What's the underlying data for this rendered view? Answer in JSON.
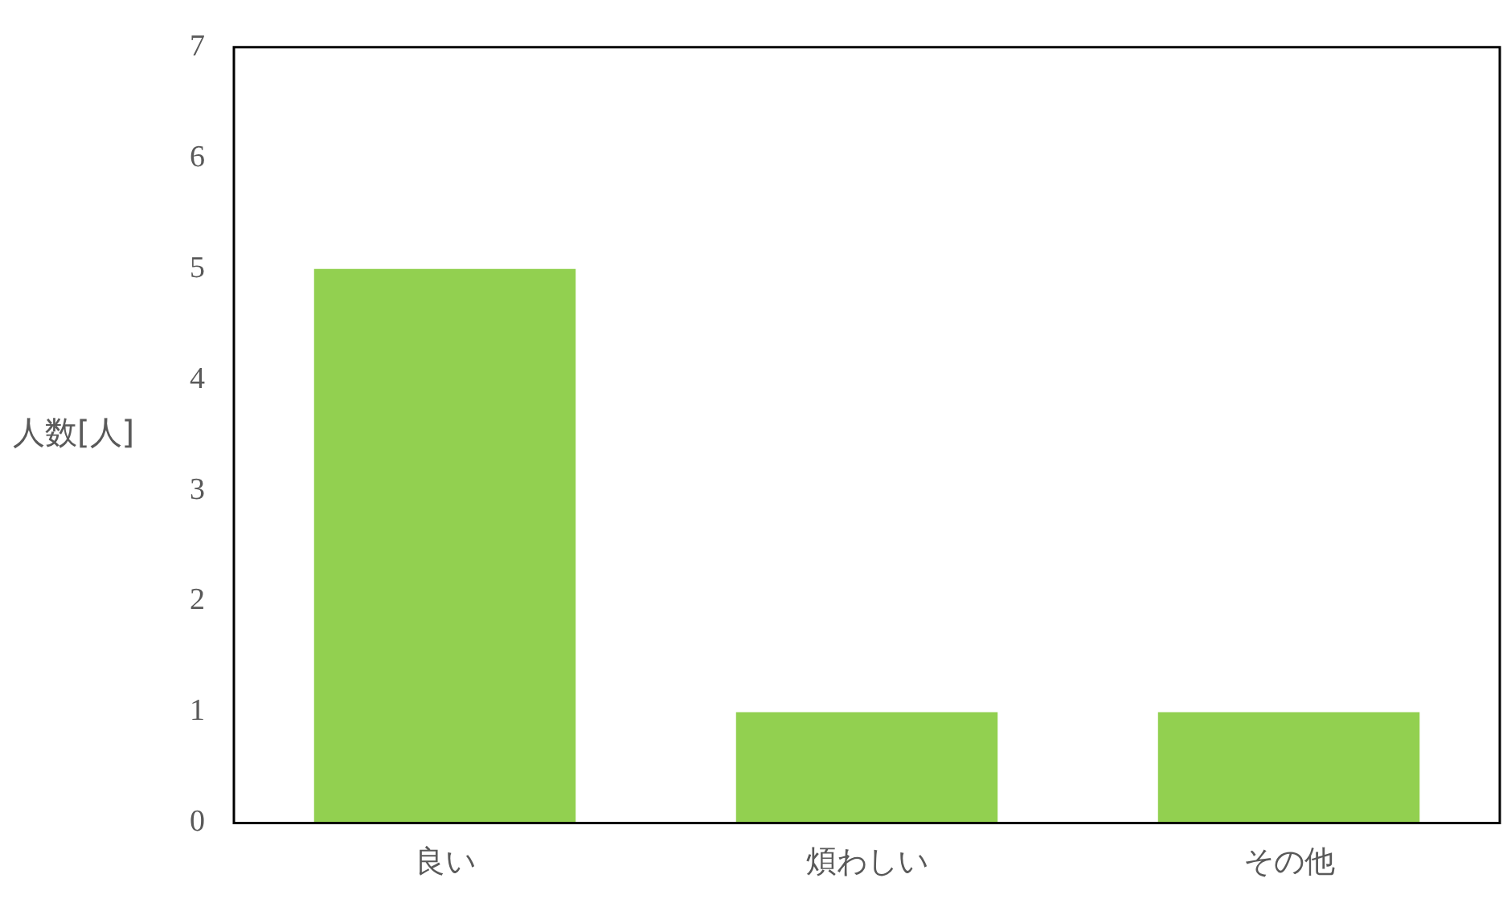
{
  "chart_data": {
    "type": "bar",
    "ylabel": "人数[人]",
    "categories": [
      "良い",
      "煩わしい",
      "その他"
    ],
    "values": [
      5,
      1,
      1
    ],
    "color": "#92d050",
    "ylim": [
      0,
      7
    ],
    "yticks": [
      0,
      1,
      2,
      3,
      4,
      5,
      6,
      7
    ],
    "grid": false,
    "legend": false
  }
}
